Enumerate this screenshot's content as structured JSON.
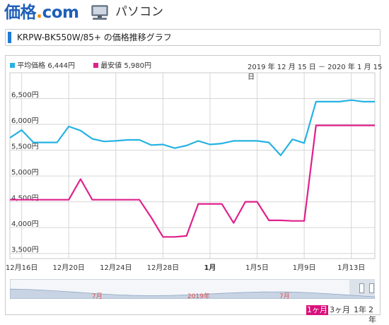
{
  "header": {
    "logo_main": "価格",
    "logo_dot": ".",
    "logo_suffix": "com",
    "section": "パソコン"
  },
  "title_bar": {
    "title": "KRPW-BK550W/85+ の価格推移グラフ"
  },
  "colors": {
    "avg": "#25b3e3",
    "min": "#e0208b",
    "accent": "#1e7cd6",
    "active": "#d8117a"
  },
  "legend": {
    "avg_label": "平均価格",
    "avg_value": "6,444円",
    "min_label": "最安値",
    "min_value": "5,980円"
  },
  "date_range": "2019 年 12 月 15 日 － 2020 年 1 月 15 日",
  "chart_data": {
    "type": "line",
    "title": "",
    "xlabel": "",
    "ylabel": "",
    "x": [
      "12/15",
      "12/16",
      "12/17",
      "12/18",
      "12/19",
      "12/20",
      "12/21",
      "12/22",
      "12/23",
      "12/24",
      "12/25",
      "12/26",
      "12/27",
      "12/28",
      "12/29",
      "12/30",
      "12/31",
      "1/1",
      "1/2",
      "1/3",
      "1/4",
      "1/5",
      "1/6",
      "1/7",
      "1/8",
      "1/9",
      "1/10",
      "1/11",
      "1/12",
      "1/13",
      "1/14",
      "1/15"
    ],
    "ylim": [
      3400,
      7000
    ],
    "yticks": [
      "3,500円",
      "4,000円",
      "4,500円",
      "5,000円",
      "5,500円",
      "6,000円",
      "6,500円"
    ],
    "ytick_values": [
      3500,
      4000,
      4500,
      5000,
      5500,
      6000,
      6500
    ],
    "xticks": [
      {
        "index": 1,
        "label": "12月16日"
      },
      {
        "index": 5,
        "label": "12月20日"
      },
      {
        "index": 9,
        "label": "12月24日"
      },
      {
        "index": 13,
        "label": "12月28日"
      },
      {
        "index": 17,
        "label": "1月"
      },
      {
        "index": 21,
        "label": "1月5日"
      },
      {
        "index": 25,
        "label": "1月9日"
      },
      {
        "index": 29,
        "label": "1月13日"
      }
    ],
    "grid": true,
    "legend_position": "top-left",
    "series": [
      {
        "name": "平均価格",
        "values": [
          5740,
          5890,
          5650,
          5650,
          5650,
          5960,
          5880,
          5720,
          5670,
          5680,
          5700,
          5700,
          5600,
          5610,
          5540,
          5590,
          5680,
          5610,
          5630,
          5680,
          5680,
          5680,
          5650,
          5400,
          5710,
          5640,
          6440,
          6440,
          6440,
          6470,
          6440,
          6440
        ]
      },
      {
        "name": "最安値",
        "values": [
          4540,
          4540,
          4540,
          4540,
          4540,
          4540,
          4940,
          4540,
          4540,
          4540,
          4540,
          4540,
          4200,
          3820,
          3820,
          3840,
          4460,
          4460,
          4460,
          4090,
          4500,
          4500,
          4140,
          4140,
          4130,
          4130,
          5980,
          5980,
          5980,
          5980,
          5980,
          5980
        ]
      }
    ]
  },
  "navigator": {
    "labels": [
      "7月",
      "2019年",
      "7月"
    ]
  },
  "range_buttons": [
    "1ヶ月",
    "3ヶ月",
    "1年",
    "2年"
  ],
  "active_range": "1ヶ月"
}
